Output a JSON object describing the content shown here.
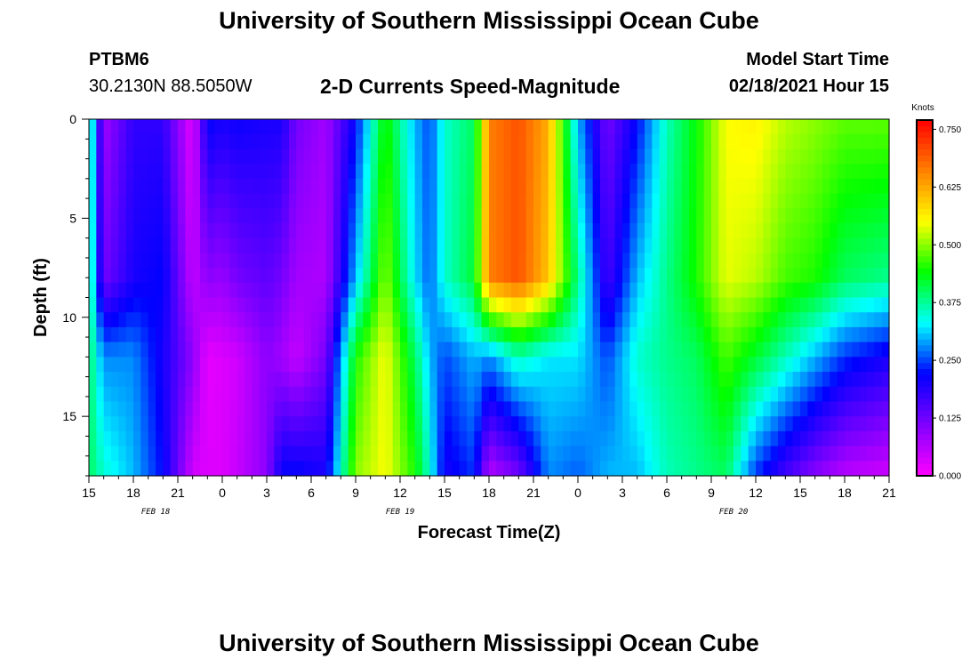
{
  "header": {
    "title": "University of Southern Mississippi Ocean Cube",
    "station_id": "PTBM6",
    "station_coords": "30.2130N 88.5050W",
    "chart_title": "2-D Currents Speed-Magnitude",
    "model_start_label": "Model Start Time",
    "model_start_value": "02/18/2021 Hour 15"
  },
  "footer": {
    "title": "University of Southern Mississippi Ocean Cube"
  },
  "chart_data": {
    "type": "heatmap",
    "title": "2-D Currents Speed-Magnitude",
    "xlabel": "Forecast Time(Z)",
    "ylabel": "Depth (ft)",
    "colorbar_label": "Knots",
    "x_hours": [
      0,
      54
    ],
    "x_tick_labels": [
      "15",
      "18",
      "21",
      "0",
      "3",
      "6",
      "9",
      "12",
      "15",
      "18",
      "21",
      "0",
      "3",
      "6",
      "9",
      "12",
      "15",
      "18",
      "21"
    ],
    "day_labels": [
      {
        "text": "FEB 18",
        "hour": 4.5
      },
      {
        "text": "FEB 19",
        "hour": 21
      },
      {
        "text": "FEB 20",
        "hour": 43.5
      }
    ],
    "ylim": [
      0,
      18
    ],
    "y_inverted": true,
    "y_ticks": [
      0,
      5,
      10,
      15
    ],
    "colorbar_ticks": [
      "0.000",
      "0.125",
      "0.250",
      "0.375",
      "0.500",
      "0.625",
      "0.750"
    ],
    "value_range": [
      0,
      0.77
    ],
    "colorscale": [
      "#ff00ff",
      "#8000ff",
      "#0000ff",
      "#00ffff",
      "#00ff00",
      "#ffff00",
      "#ff8000",
      "#ff0000"
    ],
    "value_units": "knots",
    "speed_profiles_by_hour": [
      {
        "h": 0,
        "v": [
          0.4,
          0.4,
          0.4,
          0.4
        ]
      },
      {
        "h": 1,
        "v": [
          0.08,
          0.12,
          0.28,
          0.35
        ]
      },
      {
        "h": 3,
        "v": [
          0.18,
          0.2,
          0.28,
          0.3
        ]
      },
      {
        "h": 5,
        "v": [
          0.18,
          0.22,
          0.2,
          0.22
        ]
      },
      {
        "h": 7,
        "v": [
          0.02,
          0.05,
          0.1,
          0.04
        ]
      },
      {
        "h": 8,
        "v": [
          0.22,
          0.1,
          0.02,
          0.03
        ]
      },
      {
        "h": 9,
        "v": [
          0.2,
          0.09,
          0.03,
          0.03
        ]
      },
      {
        "h": 10,
        "v": [
          0.21,
          0.12,
          0.04,
          0.05
        ]
      },
      {
        "h": 12,
        "v": [
          0.2,
          0.14,
          0.1,
          0.1
        ]
      },
      {
        "h": 13,
        "v": [
          0.2,
          0.12,
          0.08,
          0.22
        ]
      },
      {
        "h": 14,
        "v": [
          0.12,
          0.08,
          0.05,
          0.22
        ]
      },
      {
        "h": 16,
        "v": [
          0.08,
          0.07,
          0.12,
          0.2
        ]
      },
      {
        "h": 18,
        "v": [
          0.22,
          0.3,
          0.45,
          0.5
        ]
      },
      {
        "h": 20,
        "v": [
          0.45,
          0.5,
          0.55,
          0.55
        ]
      },
      {
        "h": 22,
        "v": [
          0.3,
          0.32,
          0.4,
          0.45
        ]
      },
      {
        "h": 23,
        "v": [
          0.25,
          0.26,
          0.3,
          0.35
        ]
      },
      {
        "h": 24,
        "v": [
          0.35,
          0.35,
          0.25,
          0.2
        ]
      },
      {
        "h": 26,
        "v": [
          0.4,
          0.42,
          0.3,
          0.24
        ]
      },
      {
        "h": 27,
        "v": [
          0.66,
          0.66,
          0.28,
          0.06
        ]
      },
      {
        "h": 29,
        "v": [
          0.7,
          0.7,
          0.36,
          0.12
        ]
      },
      {
        "h": 31,
        "v": [
          0.62,
          0.6,
          0.32,
          0.28
        ]
      },
      {
        "h": 33,
        "v": [
          0.3,
          0.38,
          0.32,
          0.26
        ]
      },
      {
        "h": 35,
        "v": [
          0.12,
          0.16,
          0.25,
          0.3
        ]
      },
      {
        "h": 37,
        "v": [
          0.22,
          0.3,
          0.35,
          0.3
        ]
      },
      {
        "h": 39,
        "v": [
          0.36,
          0.38,
          0.38,
          0.36
        ]
      },
      {
        "h": 41,
        "v": [
          0.44,
          0.45,
          0.4,
          0.38
        ]
      },
      {
        "h": 43,
        "v": [
          0.55,
          0.54,
          0.47,
          0.4
        ]
      },
      {
        "h": 45,
        "v": [
          0.56,
          0.52,
          0.42,
          0.24
        ]
      },
      {
        "h": 47,
        "v": [
          0.52,
          0.47,
          0.36,
          0.16
        ]
      },
      {
        "h": 49,
        "v": [
          0.5,
          0.45,
          0.3,
          0.1
        ]
      },
      {
        "h": 51,
        "v": [
          0.48,
          0.4,
          0.24,
          0.06
        ]
      },
      {
        "h": 54,
        "v": [
          0.48,
          0.38,
          0.2,
          0.04
        ]
      }
    ],
    "profile_depths_ft": [
      0,
      8,
      12,
      18
    ]
  }
}
